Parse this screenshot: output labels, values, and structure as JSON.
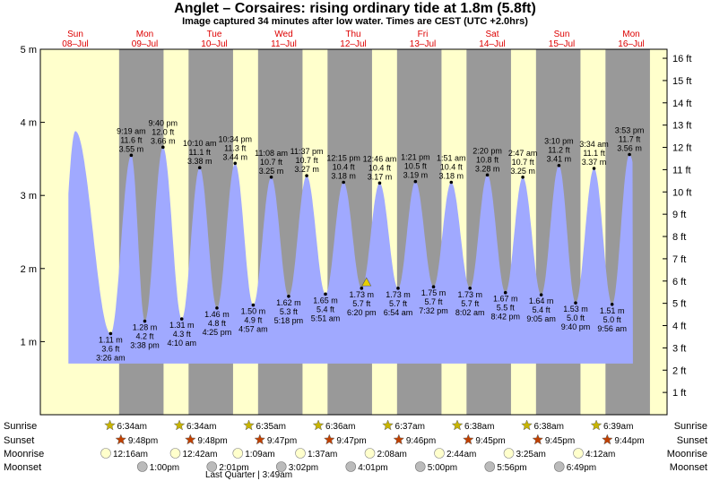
{
  "title": "Anglet – Corsaires: rising  ordinary tide at 1.8m (5.8ft)",
  "subtitle": "Image captured 34 minutes after low water. Times are CEST (UTC +2.0hrs)",
  "colors": {
    "day": "#ffffcc",
    "night": "#999999",
    "water": "#a0a9ff",
    "day_label": "#dd0000",
    "sun_star": "#c8b400",
    "sunset_star": "#c04000",
    "moon_disc": "#ffffcc",
    "moonset_disc": "#bbbbbb",
    "marker": "#e8d000"
  },
  "days": [
    {
      "dow": "Sun",
      "date": "08–Jul"
    },
    {
      "dow": "Mon",
      "date": "09–Jul"
    },
    {
      "dow": "Tue",
      "date": "10–Jul"
    },
    {
      "dow": "Wed",
      "date": "11–Jul"
    },
    {
      "dow": "Thu",
      "date": "12–Jul"
    },
    {
      "dow": "Fri",
      "date": "13–Jul"
    },
    {
      "dow": "Sat",
      "date": "14–Jul"
    },
    {
      "dow": "Sun",
      "date": "15–Jul"
    },
    {
      "dow": "Mon",
      "date": "16–Jul"
    }
  ],
  "chart_data": {
    "type": "area",
    "ylabel_left_unit": "m",
    "ylabel_right_unit": "ft",
    "ylim_m": [
      0,
      5
    ],
    "yticks_m": [
      "1 m",
      "2 m",
      "3 m",
      "4 m",
      "5 m"
    ],
    "yticks_ft": [
      "1 ft",
      "2 ft",
      "3 ft",
      "4 ft",
      "5 ft",
      "6 ft",
      "7 ft",
      "8 ft",
      "9 ft",
      "10 ft",
      "11 ft",
      "12 ft",
      "13 ft",
      "14 ft",
      "15 ft",
      "16 ft"
    ],
    "current": {
      "height_m": 1.8,
      "height_ft": 5.8
    },
    "tides": [
      {
        "type": "high",
        "t": 0.0,
        "m": 3.88,
        "ft": null,
        "time": null
      },
      {
        "type": "low",
        "t": 0.508,
        "m": 1.11,
        "ft": "3.6 ft",
        "time": "3:26 am",
        "m_label": "1.11 m"
      },
      {
        "type": "high",
        "t": 0.805,
        "m": 3.55,
        "ft": "11.6 ft",
        "time": "9:19 am",
        "m_label": "3.55 m"
      },
      {
        "type": "low",
        "t": 1.0,
        "m": 1.28,
        "ft": "4.2 ft",
        "time": "3:38 pm",
        "m_label": "1.28 m"
      },
      {
        "type": "high",
        "t": 1.262,
        "m": 3.66,
        "ft": "12.0 ft",
        "time": "9:40 pm",
        "m_label": "3.66 m"
      },
      {
        "type": "low",
        "t": 1.532,
        "m": 1.31,
        "ft": "4.3 ft",
        "time": "4:10 am",
        "m_label": "1.31 m"
      },
      {
        "type": "high",
        "t": 1.79,
        "m": 3.38,
        "ft": "11.1 ft",
        "time": "10:10 am",
        "m_label": "3.38 m"
      },
      {
        "type": "low",
        "t": 2.038,
        "m": 1.46,
        "ft": "4.8 ft",
        "time": "4:25 pm",
        "m_label": "1.46 m"
      },
      {
        "type": "high",
        "t": 2.3,
        "m": 3.44,
        "ft": "11.3 ft",
        "time": "10:34 pm",
        "m_label": "3.44 m"
      },
      {
        "type": "low",
        "t": 2.56,
        "m": 1.5,
        "ft": "4.9 ft",
        "time": "4:57 am",
        "m_label": "1.50 m"
      },
      {
        "type": "high",
        "t": 2.82,
        "m": 3.25,
        "ft": "10.7 ft",
        "time": "11:08 am",
        "m_label": "3.25 m"
      },
      {
        "type": "low",
        "t": 3.07,
        "m": 1.62,
        "ft": "5.3 ft",
        "time": "5:18 pm",
        "m_label": "1.62 m"
      },
      {
        "type": "high",
        "t": 3.33,
        "m": 3.27,
        "ft": "10.7 ft",
        "time": "11:37 pm",
        "m_label": "3.27 m"
      },
      {
        "type": "low",
        "t": 3.6,
        "m": 1.65,
        "ft": "5.4 ft",
        "time": "5:51 am",
        "m_label": "1.65 m"
      },
      {
        "type": "high",
        "t": 3.86,
        "m": 3.18,
        "ft": "10.4 ft",
        "time": "12:15 pm",
        "m_label": "3.18 m"
      },
      {
        "type": "low",
        "t": 4.12,
        "m": 1.73,
        "ft": "5.7 ft",
        "time": "6:20 pm",
        "m_label": "1.73 m"
      },
      {
        "type": "high",
        "t": 4.38,
        "m": 3.17,
        "ft": "10.4 ft",
        "time": "12:46 am",
        "m_label": "3.17 m"
      },
      {
        "type": "low",
        "t": 4.645,
        "m": 1.73,
        "ft": "5.7 ft",
        "time": "6:54 am",
        "m_label": "1.73 m"
      },
      {
        "type": "high",
        "t": 4.895,
        "m": 3.19,
        "ft": "10.5 ft",
        "time": "1:21 pm",
        "m_label": "3.19 m"
      },
      {
        "type": "low",
        "t": 5.155,
        "m": 1.75,
        "ft": "5.7 ft",
        "time": "7:32 pm",
        "m_label": "1.75 m"
      },
      {
        "type": "high",
        "t": 5.41,
        "m": 3.18,
        "ft": "10.4 ft",
        "time": "1:51 am",
        "m_label": "3.18 m"
      },
      {
        "type": "low",
        "t": 5.68,
        "m": 1.73,
        "ft": "5.7 ft",
        "time": "8:02 am",
        "m_label": "1.73 m"
      },
      {
        "type": "high",
        "t": 5.93,
        "m": 3.28,
        "ft": "10.8 ft",
        "time": "2:20 pm",
        "m_label": "3.28 m"
      },
      {
        "type": "low",
        "t": 6.19,
        "m": 1.67,
        "ft": "5.5 ft",
        "time": "8:42 pm",
        "m_label": "1.67 m"
      },
      {
        "type": "high",
        "t": 6.44,
        "m": 3.25,
        "ft": "10.7 ft",
        "time": "2:47 am",
        "m_label": "3.25 m"
      },
      {
        "type": "low",
        "t": 6.705,
        "m": 1.64,
        "ft": "5.4 ft",
        "time": "9:05 am",
        "m_label": "1.64 m"
      },
      {
        "type": "high",
        "t": 6.96,
        "m": 3.41,
        "ft": "11.2 ft",
        "time": "3:10 pm",
        "m_label": "3.41 m"
      },
      {
        "type": "low",
        "t": 7.2,
        "m": 1.53,
        "ft": "5.0 ft",
        "time": "9:40 pm",
        "m_label": "1.53 m"
      },
      {
        "type": "high",
        "t": 7.465,
        "m": 3.37,
        "ft": "11.1 ft",
        "time": "3:34 am",
        "m_label": "3.37 m"
      },
      {
        "type": "low",
        "t": 7.725,
        "m": 1.51,
        "ft": "5.0 ft",
        "time": "9:56 am",
        "m_label": "1.51 m"
      },
      {
        "type": "high",
        "t": 7.975,
        "m": 3.56,
        "ft": "11.7 ft",
        "time": "3:53 pm",
        "m_label": "3.56 m"
      }
    ]
  },
  "bottom_rows": {
    "labels": {
      "sunrise": "Sunrise",
      "sunset": "Sunset",
      "moonrise": "Moonrise",
      "moonset": "Moonset"
    },
    "sunrise": [
      {
        "t": 0.82,
        "time": "6:34am"
      },
      {
        "t": 1.82,
        "time": "6:34am"
      },
      {
        "t": 2.82,
        "time": "6:35am"
      },
      {
        "t": 3.82,
        "time": "6:36am"
      },
      {
        "t": 4.82,
        "time": "6:37am"
      },
      {
        "t": 5.82,
        "time": "6:38am"
      },
      {
        "t": 6.82,
        "time": "6:38am"
      },
      {
        "t": 7.82,
        "time": "6:39am"
      }
    ],
    "sunset": [
      {
        "t": 0.63,
        "time": "9:48pm"
      },
      {
        "t": 1.63,
        "time": "9:48pm"
      },
      {
        "t": 2.63,
        "time": "9:47pm"
      },
      {
        "t": 3.63,
        "time": "9:47pm"
      },
      {
        "t": 4.63,
        "time": "9:46pm"
      },
      {
        "t": 5.63,
        "time": "9:45pm"
      },
      {
        "t": 6.63,
        "time": "9:45pm"
      },
      {
        "t": 7.63,
        "time": "9:44pm"
      }
    ],
    "moonrise": [
      {
        "t": 0.8,
        "time": "12:16am"
      },
      {
        "t": 1.8,
        "time": "12:42am"
      },
      {
        "t": 2.7,
        "time": "1:09am"
      },
      {
        "t": 3.6,
        "time": "1:37am"
      },
      {
        "t": 4.6,
        "time": "2:08am"
      },
      {
        "t": 5.6,
        "time": "2:44am"
      },
      {
        "t": 6.6,
        "time": "3:25am"
      },
      {
        "t": 7.6,
        "time": "4:12am"
      }
    ],
    "moonset": [
      {
        "t": 1.3,
        "time": "1:00pm"
      },
      {
        "t": 2.3,
        "time": "2:01pm"
      },
      {
        "t": 3.3,
        "time": "3:02pm"
      },
      {
        "t": 4.3,
        "time": "4:01pm"
      },
      {
        "t": 5.3,
        "time": "5:00pm"
      },
      {
        "t": 6.3,
        "time": "5:56pm"
      },
      {
        "t": 7.3,
        "time": "6:49pm"
      }
    ],
    "moon_phase": {
      "t": 2.58,
      "text": "Last Quarter | 3:49am"
    }
  }
}
